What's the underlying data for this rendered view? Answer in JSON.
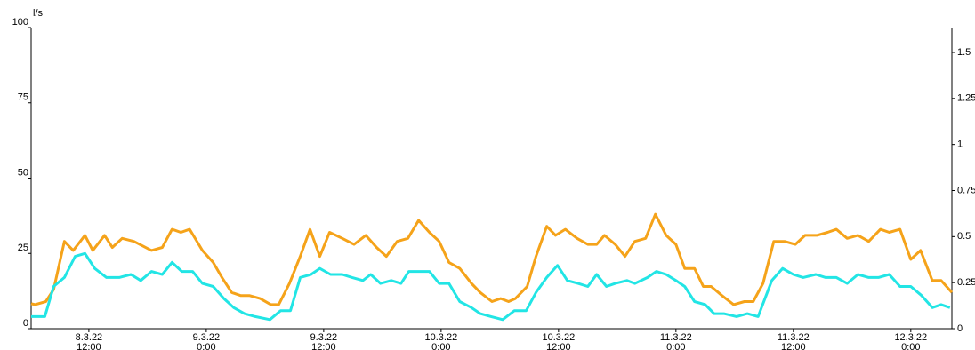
{
  "chart_data": {
    "type": "line",
    "y_label": "l/s",
    "xlim": [
      6.1,
      100.2
    ],
    "xticks": [
      {
        "value": 12,
        "label": "8.3.22\n12:00"
      },
      {
        "value": 24,
        "label": "9.3.22\n0:00"
      },
      {
        "value": 36,
        "label": "9.3.22\n12:00"
      },
      {
        "value": 48,
        "label": "10.3.22\n0:00"
      },
      {
        "value": 60,
        "label": "10.3.22\n12:00"
      },
      {
        "value": 72,
        "label": "11.3.22\n0:00"
      },
      {
        "value": 84,
        "label": "11.3.22\n12:00"
      },
      {
        "value": 96,
        "label": "12.3.22\n0:00"
      }
    ],
    "ylim": [
      0,
      100
    ],
    "yticks": [
      0,
      25,
      50,
      75,
      100
    ],
    "y2lim": [
      0,
      1.635
    ],
    "y2ticks": [
      0,
      0.25,
      0.5,
      0.75,
      1,
      1.25,
      1.5
    ],
    "series": [
      {
        "color": "#f5a31a",
        "x": [
          6.1,
          6.5,
          7.6,
          8.4,
          9.5,
          10.4,
          11.6,
          12.4,
          13.6,
          14.4,
          15.4,
          16.6,
          18.4,
          19.5,
          20.5,
          21.4,
          22.3,
          23.6,
          24.7,
          25.6,
          26.6,
          27.5,
          28.4,
          29.5,
          30.6,
          31.4,
          32.5,
          33.6,
          34.6,
          35.6,
          36.6,
          37.9,
          39.1,
          40.3,
          41.4,
          42.4,
          43.5,
          44.6,
          45.7,
          46.8,
          47.8,
          48.8,
          49.9,
          51.1,
          52.0,
          53.2,
          54.1,
          54.9,
          55.6,
          56.8,
          57.7,
          58.8,
          59.7,
          60.7,
          61.9,
          63.0,
          63.9,
          64.7,
          65.8,
          66.8,
          67.8,
          68.9,
          69.9,
          71.0,
          72.0,
          72.9,
          73.9,
          74.8,
          75.6,
          76.7,
          77.9,
          79.0,
          79.9,
          80.9,
          82.0,
          83.1,
          84.2,
          85.2,
          86.4,
          87.5,
          88.4,
          89.5,
          90.6,
          91.7,
          92.9,
          93.8,
          94.9,
          96.0,
          97.0,
          98.2,
          99.1,
          100.2
        ],
        "values": [
          8.3,
          8,
          9,
          13,
          29,
          26,
          31,
          26,
          31,
          27,
          30,
          29,
          26,
          27,
          33,
          32,
          33,
          26,
          22,
          17,
          12,
          11,
          11,
          10,
          8,
          8,
          15,
          24,
          33,
          24,
          32,
          30,
          28,
          31,
          27,
          24,
          29,
          30,
          36,
          32,
          29,
          22,
          20,
          15,
          12,
          9,
          10,
          9,
          10,
          14,
          24,
          34,
          31,
          33,
          30,
          28,
          28,
          31,
          28,
          24,
          29,
          30,
          38,
          31,
          28,
          20,
          20,
          14,
          14,
          11,
          8,
          9,
          9,
          15,
          29,
          29,
          28,
          31,
          31,
          32,
          33,
          30,
          31,
          29,
          33,
          32,
          33,
          23,
          26,
          16,
          16,
          12
        ]
      },
      {
        "color": "#22e5e5",
        "x": [
          6.1,
          7.5,
          8.4,
          9.5,
          10.6,
          11.6,
          12.6,
          13.8,
          15.1,
          16.3,
          17.3,
          18.4,
          19.5,
          20.5,
          21.5,
          22.6,
          23.6,
          24.7,
          25.8,
          26.8,
          27.9,
          29.0,
          30.5,
          31.6,
          32.6,
          33.6,
          34.7,
          35.6,
          36.7,
          37.9,
          38.9,
          40.0,
          40.8,
          41.8,
          42.9,
          43.9,
          44.7,
          46.8,
          47.8,
          48.8,
          49.9,
          51.1,
          52.0,
          53.1,
          54.3,
          55.5,
          56.7,
          57.7,
          58.8,
          59.9,
          60.9,
          62.0,
          63.0,
          63.9,
          64.9,
          65.8,
          67.0,
          67.8,
          69.1,
          70.0,
          71.0,
          72.0,
          72.9,
          73.9,
          75.0,
          75.9,
          76.9,
          78.2,
          79.3,
          80.4,
          81.8,
          82.9,
          84.0,
          85.0,
          86.3,
          87.3,
          88.4,
          89.5,
          90.6,
          91.7,
          92.7,
          93.8,
          94.9,
          96.0,
          97.1,
          98.2,
          99.1,
          100.0
        ],
        "values": [
          4,
          4,
          14,
          17,
          24,
          25,
          20,
          17,
          17,
          18,
          16,
          19,
          18,
          22,
          19,
          19,
          15,
          14,
          10,
          7,
          5,
          4,
          3,
          6,
          6,
          17,
          18,
          20,
          18,
          18,
          17,
          16,
          18,
          15,
          16,
          15,
          19,
          19,
          15,
          15,
          9,
          7,
          5,
          4,
          3,
          6,
          6,
          12,
          17,
          21,
          16,
          15,
          14,
          18,
          14,
          15,
          16,
          15,
          17,
          19,
          18,
          16,
          14,
          9,
          8,
          5,
          5,
          4,
          5,
          4,
          16,
          20,
          18,
          17,
          18,
          17,
          17,
          15,
          18,
          17,
          17,
          18,
          14,
          14,
          11,
          7,
          8,
          7
        ]
      }
    ]
  }
}
